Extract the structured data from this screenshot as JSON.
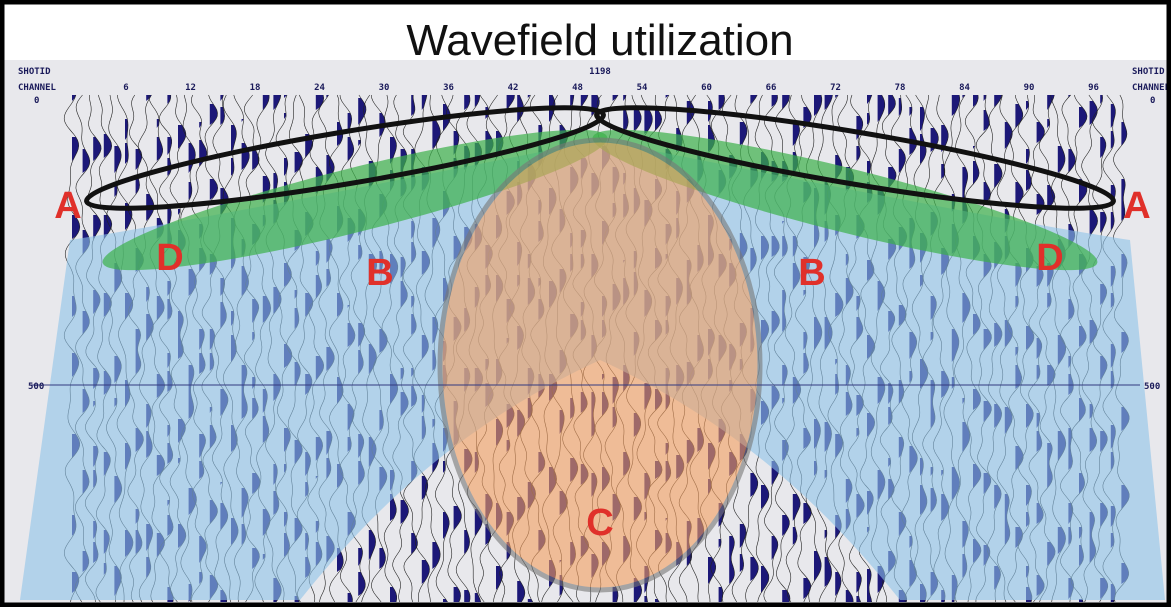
{
  "title": "Wavefield utilization",
  "axis": {
    "left": {
      "shotid": "SHOTID",
      "channel": "CHANNEL",
      "ticks": [
        "0",
        "500"
      ]
    },
    "right": {
      "shotid": "SHOTID",
      "channel": "CHANNEL",
      "ticks": [
        "0",
        "500"
      ]
    },
    "shot": "1198",
    "channel_ticks": [
      6,
      12,
      18,
      24,
      30,
      36,
      42,
      48,
      54,
      60,
      66,
      72,
      78,
      84,
      90,
      96
    ]
  },
  "labels": [
    "A",
    "A",
    "D",
    "D",
    "B",
    "B",
    "C"
  ]
}
